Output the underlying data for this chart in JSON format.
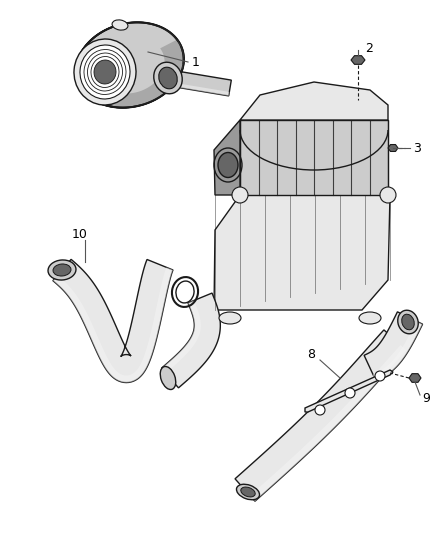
{
  "background_color": "#ffffff",
  "fig_width": 4.38,
  "fig_height": 5.33,
  "dpi": 100,
  "label_fontsize": 9,
  "edge_color": "#1a1a1a",
  "fill_light": "#e8e8e8",
  "fill_mid": "#cccccc",
  "fill_dark": "#999999",
  "fill_darkest": "#666666",
  "label_color": "#000000",
  "line_color": "#444444"
}
